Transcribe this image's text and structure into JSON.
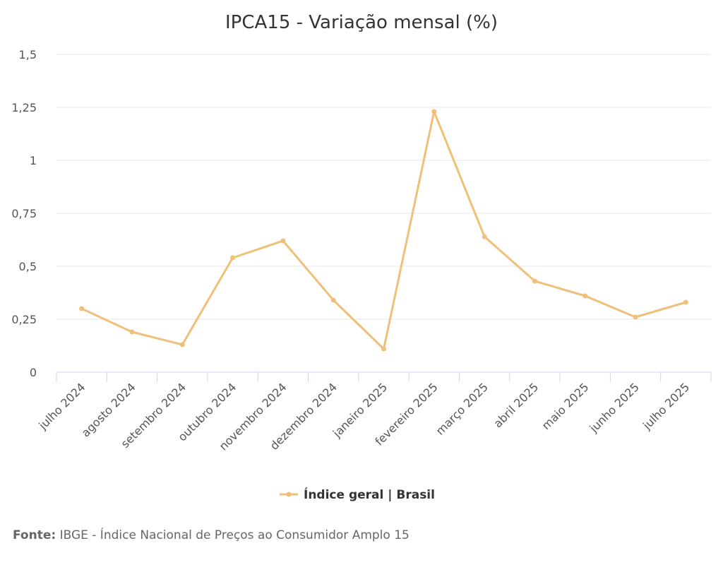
{
  "chart_data": {
    "type": "line",
    "title": "IPCA15 - Variação mensal (%)",
    "categories": [
      "julho 2024",
      "agosto 2024",
      "setembro 2024",
      "outubro 2024",
      "novembro 2024",
      "dezembro 2024",
      "janeiro 2025",
      "fevereiro 2025",
      "março 2025",
      "abril 2025",
      "maio 2025",
      "junho 2025",
      "julho 2025"
    ],
    "series": [
      {
        "name": "Índice geral | Brasil",
        "color": "#f0c07a",
        "values": [
          0.3,
          0.19,
          0.13,
          0.54,
          0.62,
          0.34,
          0.11,
          1.23,
          0.64,
          0.43,
          0.36,
          0.26,
          0.33
        ]
      }
    ],
    "y_ticks": [
      "0",
      "0,25",
      "0,5",
      "0,75",
      "1",
      "1,25",
      "1,5"
    ],
    "ylim": [
      0,
      1.5
    ],
    "ytick_step": 0.25,
    "grid": true,
    "legend_position": "bottom-center"
  },
  "footer": {
    "source_label": "Fonte:",
    "source_text": "IBGE - Índice Nacional de Preços ao Consumidor Amplo 15"
  }
}
